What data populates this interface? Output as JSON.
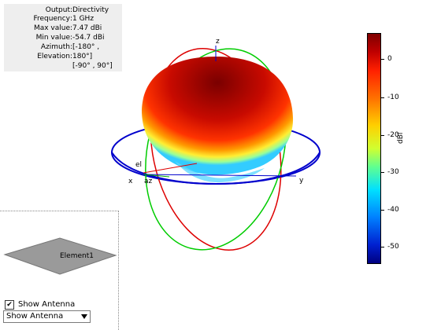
{
  "info": {
    "rows": [
      {
        "key": "Output",
        "value": "Directivity"
      },
      {
        "key": "Frequency",
        "value": "1 GHz"
      },
      {
        "key": "Max value",
        "value": "7.47 dBi"
      },
      {
        "key": "Min value",
        "value": "-54.7 dBi"
      },
      {
        "key": "Azimuth",
        "value": "[-180° ,"
      },
      {
        "key": "Elevation",
        "value": "180°]"
      },
      {
        "key": "",
        "value": "[-90° , 90°]"
      }
    ]
  },
  "axes": {
    "x": "x",
    "y": "y",
    "z": "z",
    "el": "el",
    "az": "az"
  },
  "colorbar": {
    "unit": "dBi",
    "ticks": [
      "0",
      "-10",
      "-20",
      "-30",
      "-40",
      "-50"
    ],
    "range": [
      -54.7,
      7.47
    ]
  },
  "antenna": {
    "element_label": "Element1",
    "show_antenna_checkbox_label": "Show Antenna",
    "show_antenna_checked": true,
    "dropdown_value": "Show Antenna"
  },
  "colors": {
    "azimuth_circle": "#0000cc",
    "elevation_circle_red": "#dd0000",
    "elevation_circle_green": "#00cc00",
    "pattern_top": "#7f0000"
  }
}
